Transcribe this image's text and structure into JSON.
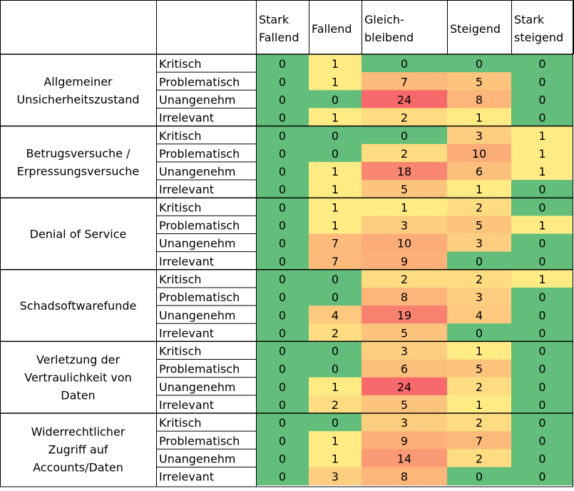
{
  "chart_data": {
    "type": "heatmap",
    "columns": [
      {
        "line1": "Stark",
        "line2": "Fallend"
      },
      {
        "line1": "Fallend",
        "line2": ""
      },
      {
        "line1": "Gleich-",
        "line2": "bleibend"
      },
      {
        "line1": "Steigend",
        "line2": ""
      },
      {
        "line1": "Stark",
        "line2": "steigend"
      }
    ],
    "groups": [
      {
        "label_lines": [
          "Allgemeiner",
          "Unsicherheitszustand"
        ],
        "rows": [
          {
            "label": "Kritisch",
            "values": [
              0,
              1,
              0,
              0,
              0
            ]
          },
          {
            "label": "Problematisch",
            "values": [
              0,
              1,
              7,
              5,
              0
            ]
          },
          {
            "label": "Unangenehm",
            "values": [
              0,
              0,
              24,
              8,
              0
            ]
          },
          {
            "label": "Irrelevant",
            "values": [
              0,
              1,
              2,
              1,
              0
            ]
          }
        ]
      },
      {
        "label_lines": [
          "Betrugsversuche /",
          "Erpressungsversuche"
        ],
        "rows": [
          {
            "label": "Kritisch",
            "values": [
              0,
              0,
              0,
              3,
              1
            ]
          },
          {
            "label": "Problematisch",
            "values": [
              0,
              0,
              2,
              10,
              1
            ]
          },
          {
            "label": "Unangenehm",
            "values": [
              0,
              1,
              18,
              6,
              1
            ]
          },
          {
            "label": "Irrelevant",
            "values": [
              0,
              1,
              5,
              1,
              0
            ]
          }
        ]
      },
      {
        "label_lines": [
          "Denial of Service"
        ],
        "rows": [
          {
            "label": "Kritisch",
            "values": [
              0,
              1,
              1,
              2,
              0
            ]
          },
          {
            "label": "Problematisch",
            "values": [
              0,
              1,
              3,
              5,
              1
            ]
          },
          {
            "label": "Unangenehm",
            "values": [
              0,
              7,
              10,
              3,
              0
            ]
          },
          {
            "label": "Irrelevant",
            "values": [
              0,
              7,
              9,
              0,
              0
            ]
          }
        ]
      },
      {
        "label_lines": [
          "Schadsoftwarefunde"
        ],
        "rows": [
          {
            "label": "Kritisch",
            "values": [
              0,
              0,
              2,
              2,
              1
            ]
          },
          {
            "label": "Problematisch",
            "values": [
              0,
              0,
              8,
              3,
              0
            ]
          },
          {
            "label": "Unangenehm",
            "values": [
              0,
              4,
              19,
              4,
              0
            ]
          },
          {
            "label": "Irrelevant",
            "values": [
              0,
              2,
              5,
              0,
              0
            ]
          }
        ]
      },
      {
        "label_lines": [
          "Verletzung der",
          "Vertraulichkeit von",
          "Daten"
        ],
        "rows": [
          {
            "label": "Kritisch",
            "values": [
              0,
              0,
              3,
              1,
              0
            ]
          },
          {
            "label": "Problematisch",
            "values": [
              0,
              0,
              6,
              5,
              0
            ]
          },
          {
            "label": "Unangenehm",
            "values": [
              0,
              1,
              24,
              2,
              0
            ]
          },
          {
            "label": "Irrelevant",
            "values": [
              0,
              2,
              5,
              1,
              0
            ]
          }
        ]
      },
      {
        "label_lines": [
          "Widerrechtlicher",
          "Zugriff auf",
          "Accounts/Daten"
        ],
        "rows": [
          {
            "label": "Kritisch",
            "values": [
              0,
              0,
              3,
              2,
              0
            ]
          },
          {
            "label": "Problematisch",
            "values": [
              0,
              1,
              9,
              7,
              0
            ]
          },
          {
            "label": "Unangenehm",
            "values": [
              0,
              1,
              14,
              2,
              0
            ]
          },
          {
            "label": "Irrelevant",
            "values": [
              0,
              3,
              8,
              0,
              0
            ]
          }
        ]
      }
    ],
    "colors": {
      "low": "#63be7b",
      "mid": "#ffeb84",
      "high": "#f8696b"
    },
    "grid": true,
    "legend": "none"
  }
}
